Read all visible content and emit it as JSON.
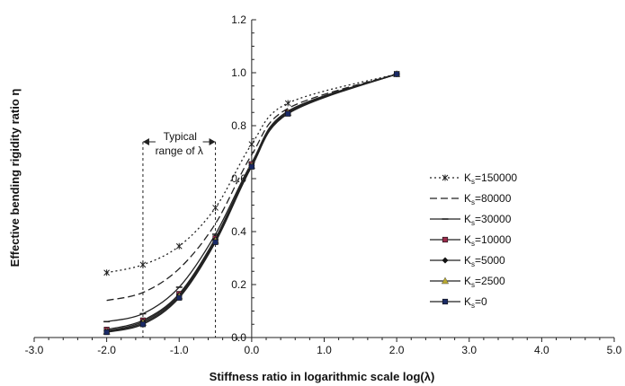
{
  "chart_data": {
    "type": "line",
    "xlabel": "Stiffness ratio in logarithmic scale log(λ)",
    "ylabel": "Effective bending rigidity ratio η",
    "xlim": [
      -3.0,
      5.0
    ],
    "ylim": [
      0.0,
      1.2
    ],
    "x_ticks": [
      "-3.0",
      "-2.0",
      "-1.0",
      "0.0",
      "1.0",
      "2.0",
      "3.0",
      "4.0",
      "5.0"
    ],
    "y_ticks": [
      "0.0",
      "0.2",
      "0.4",
      "0.6",
      "0.8",
      "1.0",
      "1.2"
    ],
    "grid": false,
    "legend_position": "right",
    "annotation": {
      "line1": "Typical",
      "line2": "range of λ",
      "x_range": [
        -1.5,
        -0.5
      ]
    },
    "series": [
      {
        "name": "Ks=150000",
        "legend_main": "K",
        "legend_sub": "s",
        "legend_value": "=150000",
        "marker": "star",
        "dash": "2,3",
        "color": "#222222",
        "x": [
          -2.0,
          -1.5,
          -1.0,
          -0.5,
          0.0,
          0.5,
          2.0
        ],
        "y": [
          0.245,
          0.275,
          0.345,
          0.49,
          0.73,
          0.885,
          0.995
        ]
      },
      {
        "name": "Ks=80000",
        "legend_main": "K",
        "legend_sub": "s",
        "legend_value": "=80000",
        "marker": "none",
        "dash": "8,4",
        "color": "#222222",
        "x": [
          -2.0,
          -1.5,
          -1.0,
          -0.5,
          0.0,
          0.5,
          2.0
        ],
        "y": [
          0.14,
          0.17,
          0.26,
          0.43,
          0.69,
          0.865,
          0.995
        ]
      },
      {
        "name": "Ks=30000",
        "legend_main": "K",
        "legend_sub": "s",
        "legend_value": "=30000",
        "marker": "dash",
        "dash": "",
        "color": "#222222",
        "x": [
          -2.0,
          -1.5,
          -1.0,
          -0.5,
          0.0,
          0.5,
          2.0
        ],
        "y": [
          0.06,
          0.09,
          0.19,
          0.39,
          0.66,
          0.855,
          0.995
        ]
      },
      {
        "name": "Ks=10000",
        "legend_main": "K",
        "legend_sub": "s",
        "legend_value": "=10000",
        "marker": "square",
        "dash": "",
        "color": "#9c2a4a",
        "x": [
          -2.0,
          -1.5,
          -1.0,
          -0.5,
          0.0,
          0.5,
          2.0
        ],
        "y": [
          0.03,
          0.065,
          0.165,
          0.375,
          0.655,
          0.85,
          0.995
        ]
      },
      {
        "name": "Ks=5000",
        "legend_main": "K",
        "legend_sub": "s",
        "legend_value": "=5000",
        "marker": "diamond",
        "dash": "",
        "color": "#111111",
        "x": [
          -2.0,
          -1.5,
          -1.0,
          -0.5,
          0.0,
          0.5,
          2.0
        ],
        "y": [
          0.025,
          0.06,
          0.16,
          0.37,
          0.65,
          0.85,
          0.995
        ]
      },
      {
        "name": "Ks=2500",
        "legend_main": "K",
        "legend_sub": "s",
        "legend_value": "=2500",
        "marker": "triangle",
        "dash": "",
        "color": "#b8a830",
        "x": [
          -2.0,
          -1.5,
          -1.0,
          -0.5,
          0.0,
          0.5,
          2.0
        ],
        "y": [
          0.022,
          0.055,
          0.155,
          0.365,
          0.648,
          0.848,
          0.995
        ]
      },
      {
        "name": "Ks=0",
        "legend_main": "K",
        "legend_sub": "s",
        "legend_value": "=0",
        "marker": "square",
        "dash": "",
        "color": "#1a2a66",
        "x": [
          -2.0,
          -1.5,
          -1.0,
          -0.5,
          0.0,
          0.5,
          2.0
        ],
        "y": [
          0.02,
          0.05,
          0.15,
          0.36,
          0.645,
          0.845,
          0.995
        ]
      }
    ]
  }
}
